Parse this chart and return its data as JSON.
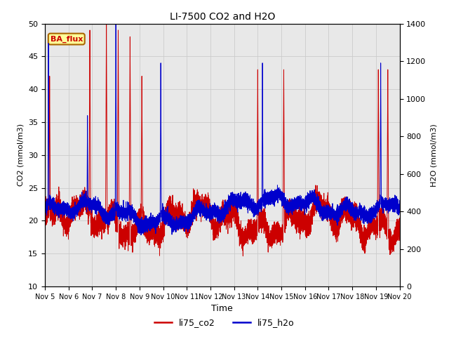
{
  "title": "LI-7500 CO2 and H2O",
  "xlabel": "Time",
  "ylabel_left": "CO2 (mmol/m3)",
  "ylabel_right": "H2O (mmol/m3)",
  "xlim": [
    0,
    15
  ],
  "ylim_left": [
    10,
    50
  ],
  "ylim_right": [
    0,
    1400
  ],
  "yticks_left": [
    10,
    15,
    20,
    25,
    30,
    35,
    40,
    45,
    50
  ],
  "yticks_right": [
    0,
    200,
    400,
    600,
    800,
    1000,
    1200,
    1400
  ],
  "xtick_labels": [
    "Nov 5",
    "Nov 6",
    "Nov 7",
    "Nov 8",
    "Nov 9",
    "Nov 10",
    "Nov 11",
    "Nov 12",
    "Nov 13",
    "Nov 14",
    "Nov 15",
    "Nov 16",
    "Nov 17",
    "Nov 18",
    "Nov 19",
    "Nov 20"
  ],
  "legend_labels": [
    "li75_co2",
    "li75_h2o"
  ],
  "co2_color": "#cc0000",
  "h2o_color": "#0000cc",
  "annotation_text": "BA_flux",
  "annotation_bg": "#ffff99",
  "annotation_border": "#aa6600",
  "grid_color": "#cccccc",
  "bg_color": "#e8e8e8",
  "linewidth": 0.7
}
